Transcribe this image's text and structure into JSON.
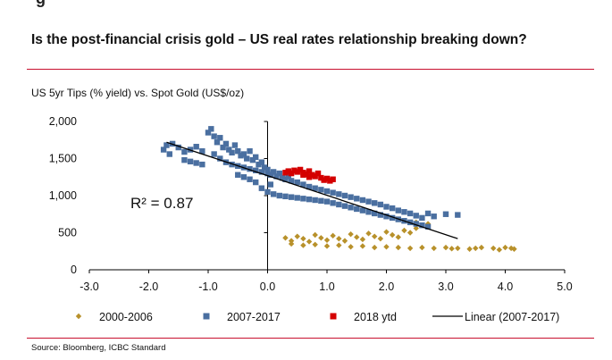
{
  "page": {
    "clipped_header": "g",
    "title": "Is the post-financial crisis gold – US real rates relationship breaking down?",
    "subtitle": "US 5yr Tips (% yield) vs. Spot Gold (US$/oz)",
    "source": "Source:  Bloomberg, ICBC Standard"
  },
  "chart_data": {
    "type": "scatter",
    "title": "US 5yr Tips (% yield) vs. Spot Gold (US$/oz)",
    "xlabel": "",
    "ylabel": "",
    "xlim": [
      -3.0,
      5.0
    ],
    "ylim": [
      0,
      2000
    ],
    "x_ticks": [
      "-3.0",
      "-2.0",
      "-1.0",
      "0.0",
      "1.0",
      "2.0",
      "3.0",
      "4.0",
      "5.0"
    ],
    "y_ticks": [
      "0",
      "500",
      "1,000",
      "1,500",
      "2,000"
    ],
    "grid": false,
    "legend_position": "bottom",
    "annotation": "R² = 0.87",
    "series": [
      {
        "name": "2000-2006",
        "marker": "diamond",
        "color": "#b8912b",
        "points": [
          [
            0.3,
            430
          ],
          [
            0.4,
            390
          ],
          [
            0.5,
            450
          ],
          [
            0.6,
            420
          ],
          [
            0.7,
            380
          ],
          [
            0.8,
            470
          ],
          [
            0.9,
            430
          ],
          [
            1.0,
            400
          ],
          [
            1.1,
            460
          ],
          [
            1.2,
            420
          ],
          [
            1.3,
            390
          ],
          [
            1.4,
            480
          ],
          [
            1.5,
            440
          ],
          [
            1.6,
            410
          ],
          [
            1.7,
            490
          ],
          [
            1.8,
            450
          ],
          [
            1.9,
            420
          ],
          [
            2.0,
            510
          ],
          [
            2.1,
            470
          ],
          [
            2.2,
            440
          ],
          [
            2.3,
            530
          ],
          [
            2.4,
            500
          ],
          [
            2.5,
            560
          ],
          [
            2.6,
            600
          ],
          [
            2.5,
            640
          ],
          [
            2.7,
            620
          ],
          [
            0.4,
            350
          ],
          [
            0.6,
            330
          ],
          [
            0.8,
            340
          ],
          [
            1.0,
            320
          ],
          [
            1.2,
            330
          ],
          [
            1.4,
            310
          ],
          [
            1.6,
            320
          ],
          [
            1.8,
            300
          ],
          [
            2.0,
            310
          ],
          [
            2.2,
            300
          ],
          [
            2.4,
            290
          ],
          [
            2.6,
            300
          ],
          [
            2.8,
            290
          ],
          [
            3.0,
            300
          ],
          [
            3.2,
            290
          ],
          [
            3.4,
            280
          ],
          [
            3.6,
            300
          ],
          [
            3.8,
            290
          ],
          [
            4.0,
            300
          ],
          [
            4.1,
            290
          ],
          [
            4.15,
            280
          ],
          [
            3.9,
            270
          ],
          [
            3.5,
            290
          ],
          [
            3.1,
            285
          ]
        ]
      },
      {
        "name": "2007-2017",
        "marker": "square",
        "color": "#4a6fa0",
        "points": [
          [
            -1.75,
            1620
          ],
          [
            -1.7,
            1680
          ],
          [
            -1.65,
            1560
          ],
          [
            -1.6,
            1700
          ],
          [
            -1.5,
            1650
          ],
          [
            -1.4,
            1590
          ],
          [
            -1.3,
            1620
          ],
          [
            -1.2,
            1660
          ],
          [
            -1.1,
            1600
          ],
          [
            -1.4,
            1480
          ],
          [
            -1.3,
            1460
          ],
          [
            -1.2,
            1440
          ],
          [
            -1.1,
            1420
          ],
          [
            -1.0,
            1850
          ],
          [
            -0.95,
            1900
          ],
          [
            -0.9,
            1800
          ],
          [
            -0.85,
            1720
          ],
          [
            -0.8,
            1780
          ],
          [
            -0.75,
            1650
          ],
          [
            -0.7,
            1700
          ],
          [
            -0.65,
            1620
          ],
          [
            -0.6,
            1580
          ],
          [
            -0.55,
            1680
          ],
          [
            -0.5,
            1600
          ],
          [
            -0.45,
            1540
          ],
          [
            -0.4,
            1560
          ],
          [
            -0.35,
            1500
          ],
          [
            -0.3,
            1600
          ],
          [
            -0.25,
            1480
          ],
          [
            -0.2,
            1520
          ],
          [
            -0.15,
            1420
          ],
          [
            -0.1,
            1450
          ],
          [
            -0.05,
            1380
          ],
          [
            -0.9,
            1560
          ],
          [
            -0.8,
            1500
          ],
          [
            -0.7,
            1450
          ],
          [
            -0.6,
            1420
          ],
          [
            -0.5,
            1400
          ],
          [
            -0.4,
            1380
          ],
          [
            -0.3,
            1360
          ],
          [
            -0.2,
            1340
          ],
          [
            -0.1,
            1320
          ],
          [
            0.0,
            1300
          ],
          [
            0.0,
            1350
          ],
          [
            0.05,
            1280
          ],
          [
            0.1,
            1320
          ],
          [
            0.15,
            1260
          ],
          [
            0.2,
            1300
          ],
          [
            0.25,
            1240
          ],
          [
            0.3,
            1220
          ],
          [
            0.35,
            1260
          ],
          [
            0.4,
            1200
          ],
          [
            0.5,
            1180
          ],
          [
            0.6,
            1150
          ],
          [
            0.7,
            1120
          ],
          [
            0.8,
            1100
          ],
          [
            0.9,
            1080
          ],
          [
            1.0,
            1060
          ],
          [
            1.1,
            1040
          ],
          [
            1.2,
            1020
          ],
          [
            1.3,
            1000
          ],
          [
            1.4,
            980
          ],
          [
            1.5,
            960
          ],
          [
            1.6,
            940
          ],
          [
            1.7,
            920
          ],
          [
            1.8,
            900
          ],
          [
            1.9,
            880
          ],
          [
            2.0,
            850
          ],
          [
            2.1,
            830
          ],
          [
            2.2,
            800
          ],
          [
            2.3,
            780
          ],
          [
            2.4,
            760
          ],
          [
            2.5,
            730
          ],
          [
            2.6,
            700
          ],
          [
            2.7,
            760
          ],
          [
            2.8,
            720
          ],
          [
            3.0,
            750
          ],
          [
            3.2,
            740
          ],
          [
            0.0,
            1050
          ],
          [
            0.1,
            1020
          ],
          [
            0.2,
            1000
          ],
          [
            0.3,
            990
          ],
          [
            0.4,
            980
          ],
          [
            0.5,
            970
          ],
          [
            0.6,
            960
          ],
          [
            0.7,
            950
          ],
          [
            0.8,
            940
          ],
          [
            0.9,
            930
          ],
          [
            1.0,
            920
          ],
          [
            1.1,
            900
          ],
          [
            1.2,
            880
          ],
          [
            1.3,
            860
          ],
          [
            1.4,
            840
          ],
          [
            1.5,
            820
          ],
          [
            1.6,
            800
          ],
          [
            1.7,
            780
          ],
          [
            1.8,
            760
          ],
          [
            1.9,
            740
          ],
          [
            2.0,
            720
          ],
          [
            2.1,
            700
          ],
          [
            2.2,
            680
          ],
          [
            2.3,
            660
          ],
          [
            2.4,
            640
          ],
          [
            2.5,
            620
          ],
          [
            2.6,
            600
          ],
          [
            2.7,
            580
          ],
          [
            -0.1,
            1100
          ],
          [
            0.05,
            1150
          ],
          [
            -0.2,
            1180
          ],
          [
            -0.3,
            1220
          ],
          [
            -0.4,
            1250
          ],
          [
            -0.5,
            1280
          ]
        ]
      },
      {
        "name": "2018 ytd",
        "marker": "square",
        "color": "#d40000",
        "points": [
          [
            0.3,
            1310
          ],
          [
            0.35,
            1330
          ],
          [
            0.4,
            1300
          ],
          [
            0.45,
            1340
          ],
          [
            0.5,
            1320
          ],
          [
            0.55,
            1350
          ],
          [
            0.6,
            1310
          ],
          [
            0.65,
            1290
          ],
          [
            0.7,
            1330
          ],
          [
            0.75,
            1280
          ],
          [
            0.8,
            1260
          ],
          [
            0.85,
            1300
          ],
          [
            0.9,
            1240
          ],
          [
            0.95,
            1210
          ],
          [
            1.0,
            1230
          ],
          [
            1.05,
            1200
          ],
          [
            1.1,
            1220
          ],
          [
            0.7,
            1250
          ],
          [
            0.6,
            1280
          ]
        ]
      }
    ],
    "trendline": {
      "name": "Linear (2007-2017)",
      "color": "#000000",
      "x": [
        -1.7,
        3.2
      ],
      "y": [
        1720,
        420
      ]
    }
  }
}
